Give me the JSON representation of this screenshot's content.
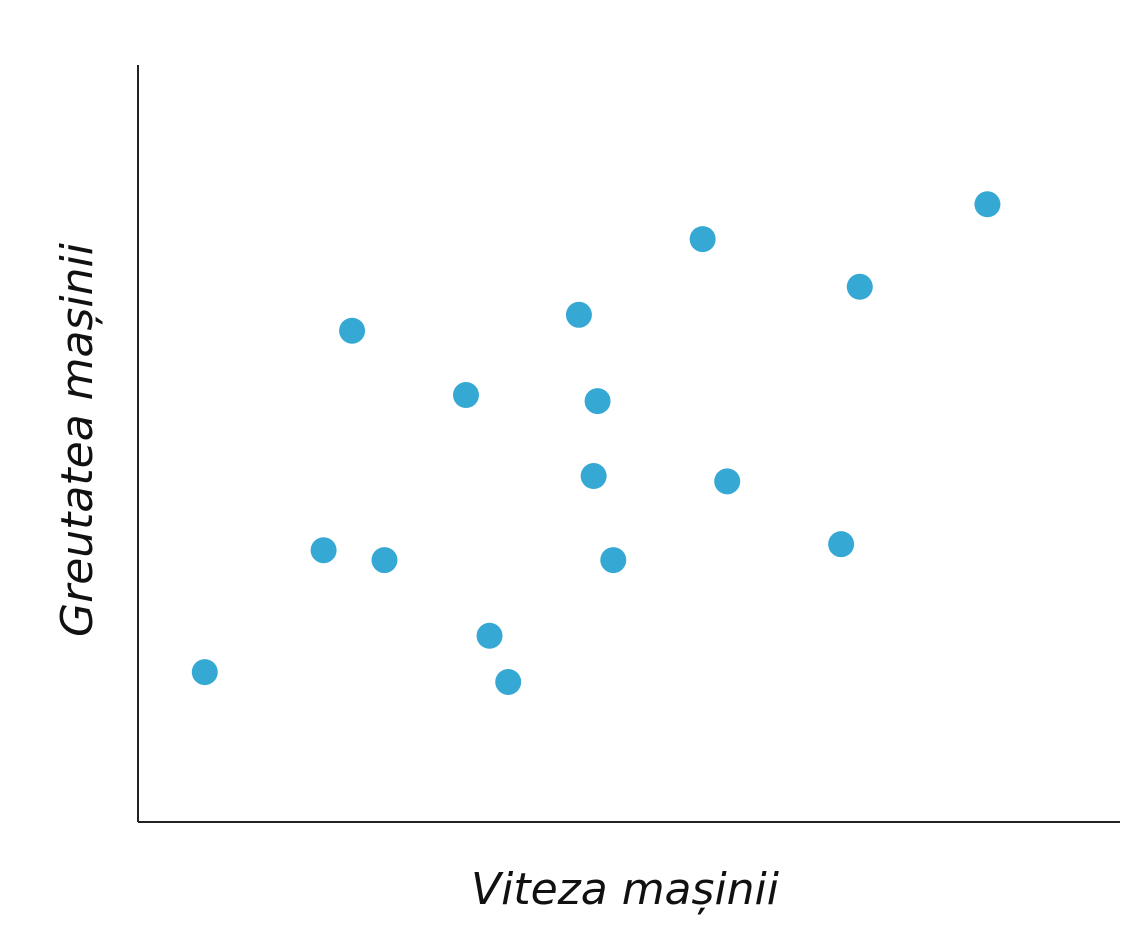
{
  "chart_data": {
    "type": "scatter",
    "x_label": "Viteza mașinii",
    "y_label": "Greutatea mașinii",
    "color": "#35a9d4",
    "xlim": [
      0,
      100
    ],
    "ylim": [
      0,
      100
    ],
    "x": [
      6.8,
      18.9,
      25.1,
      21.8,
      33.4,
      35.8,
      37.7,
      44.9,
      46.8,
      46.4,
      48.4,
      57.5,
      60.0,
      71.6,
      73.5,
      86.5
    ],
    "values": [
      19.8,
      35.9,
      34.6,
      64.9,
      56.4,
      24.6,
      18.5,
      67.0,
      55.6,
      45.7,
      34.6,
      77.0,
      45.0,
      36.7,
      70.7,
      81.6
    ]
  }
}
